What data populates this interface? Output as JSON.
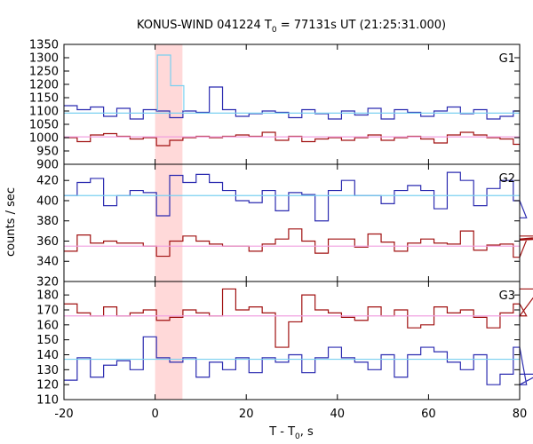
{
  "figure": {
    "title_main": "KONUS-WIND 041224 T",
    "title_sub": "0",
    "title_rest": " = 77131s UT (21:25:31.000)",
    "ylabel": "counts / sec",
    "xlabel_main": "T - T",
    "xlabel_sub": "0",
    "xlabel_rest": ", s"
  },
  "chart_data": [
    {
      "type": "line",
      "panel": "G1",
      "label": "G1",
      "xlim": [
        -20,
        80
      ],
      "ylim": [
        900,
        1350
      ],
      "yticks": [
        900,
        950,
        1000,
        1050,
        1100,
        1150,
        1200,
        1250,
        1300,
        1350
      ],
      "highlight_x": [
        0,
        6
      ],
      "step": 2.9,
      "x0": -20,
      "colors": {
        "blue": "#2b2bb0",
        "red": "#a01010",
        "cyan": "#7ad0f0",
        "pink": "#f0a0e0",
        "highlight": "#ffd9d9"
      },
      "series": [
        {
          "values": [
            1120,
            1105,
            1115,
            1080,
            1110,
            1070,
            1105,
            1100,
            1075,
            1100,
            1095,
            1190,
            1105,
            1080,
            1090,
            1100,
            1095,
            1075,
            1105,
            1090,
            1070,
            1100,
            1085,
            1110,
            1070,
            1105,
            1095,
            1080,
            1100,
            1115,
            1090,
            1105,
            1070,
            1080,
            1100
          ]
        },
        {
          "values": [
            1000,
            985,
            1010,
            1015,
            1005,
            995,
            1000,
            970,
            990,
            1000,
            1005,
            1000,
            1005,
            1010,
            1005,
            1020,
            990,
            1005,
            985,
            995,
            1000,
            990,
            1000,
            1010,
            990,
            1000,
            1005,
            995,
            980,
            1010,
            1020,
            1010,
            1000,
            995,
            975
          ]
        },
        {
          "values": [
            1092
          ]
        },
        {
          "values": [
            1003
          ]
        },
        {
          "values": [
            1310,
            1195
          ]
        }
      ]
    },
    {
      "type": "line",
      "panel": "G2",
      "label": "G2",
      "xlim": [
        -20,
        80
      ],
      "ylim": [
        320,
        436
      ],
      "yticks": [
        320,
        340,
        360,
        380,
        400,
        420
      ],
      "highlight_x": [
        0,
        6
      ],
      "step": 2.9,
      "x0": -20,
      "series": [
        {
          "values": [
            405,
            418,
            422,
            395,
            405,
            410,
            408,
            385,
            425,
            418,
            426,
            418,
            410,
            400,
            398,
            410,
            390,
            408,
            406,
            380,
            410,
            420,
            405,
            405,
            397,
            410,
            415,
            410,
            392,
            428,
            420,
            395,
            412,
            420,
            400,
            383
          ]
        },
        {
          "values": [
            350,
            366,
            358,
            360,
            358,
            358,
            355,
            345,
            360,
            365,
            360,
            357,
            355,
            355,
            350,
            357,
            362,
            372,
            360,
            348,
            362,
            362,
            354,
            367,
            359,
            350,
            358,
            362,
            358,
            357,
            370,
            351,
            356,
            357,
            344,
            361,
            362,
            365
          ]
        },
        {
          "values": [
            405
          ]
        },
        {
          "values": [
            355
          ]
        }
      ]
    },
    {
      "type": "line",
      "panel": "G3",
      "label": "G3",
      "xlim": [
        -20,
        80
      ],
      "ylim": [
        110,
        189
      ],
      "yticks": [
        110,
        120,
        130,
        140,
        150,
        160,
        170,
        180
      ],
      "highlight_x": [
        0,
        6
      ],
      "step": 2.9,
      "x0": -20,
      "series": [
        {
          "values": [
            123,
            138,
            125,
            133,
            136,
            130,
            152,
            138,
            135,
            138,
            125,
            135,
            130,
            138,
            128,
            138,
            135,
            140,
            128,
            138,
            145,
            138,
            135,
            130,
            140,
            125,
            140,
            145,
            142,
            135,
            130,
            140,
            120,
            127,
            145,
            120,
            127
          ]
        },
        {
          "values": [
            174,
            168,
            166,
            172,
            166,
            168,
            170,
            163,
            165,
            170,
            168,
            166,
            184,
            170,
            172,
            168,
            145,
            162,
            180,
            170,
            168,
            165,
            163,
            172,
            166,
            170,
            158,
            160,
            172,
            168,
            170,
            165,
            158,
            168,
            174,
            166,
            184
          ]
        },
        {
          "values": [
            137
          ]
        },
        {
          "values": [
            166
          ]
        }
      ]
    }
  ],
  "xticks": [
    -20,
    0,
    20,
    40,
    60,
    80
  ]
}
